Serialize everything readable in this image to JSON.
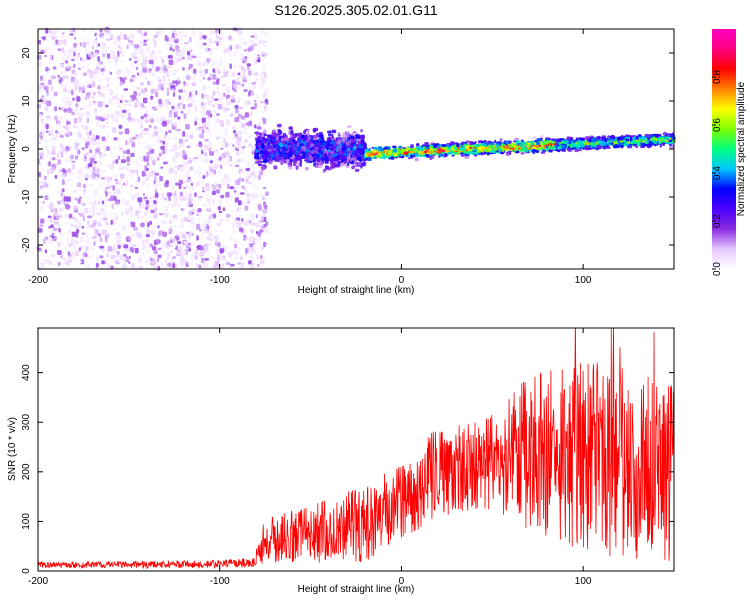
{
  "title": "S126.2025.305.02.01.G11",
  "chart_data": [
    {
      "type": "heatmap",
      "xlabel": "Height of straight line (km)",
      "ylabel": "Frequency (Hz)",
      "xlim": [
        -200,
        150
      ],
      "ylim": [
        -25,
        25
      ],
      "xticks": [
        -200,
        -100,
        0,
        100
      ],
      "yticks": [
        -20,
        -10,
        0,
        10,
        20
      ],
      "colorbar": {
        "label": "Normalized spectral amplitude",
        "range": [
          0,
          1
        ],
        "ticks": [
          "0.0",
          "0.2",
          "0.4",
          "0.6",
          "0.8"
        ],
        "colormap": [
          "#ffffff",
          "#e6c8ff",
          "#8a2be2",
          "#4b00ff",
          "#0000ff",
          "#00c8ff",
          "#00ff80",
          "#7fff00",
          "#ffff00",
          "#ff8000",
          "#ff0000",
          "#ff0080",
          "#ff00c0"
        ]
      },
      "regions": [
        {
          "x_range": [
            -200,
            -80
          ],
          "description": "diffuse low-amplitude noise over full frequency range",
          "amplitude": [
            0.02,
            0.18
          ]
        },
        {
          "x_range": [
            -80,
            -20
          ],
          "center_freq": 0,
          "freq_spread": 5,
          "amplitude": [
            0.1,
            0.35
          ]
        },
        {
          "x_range": [
            -20,
            150
          ],
          "center_freq_start": -1,
          "center_freq_end": 2,
          "freq_spread": 1.5,
          "amplitude": [
            0.3,
            0.9
          ]
        }
      ],
      "grid": false
    },
    {
      "type": "line",
      "xlabel": "Height of straight line (km)",
      "ylabel": "SNR (10 * v/v)",
      "xlim": [
        -200,
        150
      ],
      "ylim": [
        0,
        490
      ],
      "xticks": [
        -200,
        -100,
        0,
        100
      ],
      "yticks": [
        0,
        100,
        200,
        300,
        400
      ],
      "series_color": "#ff0000",
      "envelope": [
        {
          "x": -200,
          "mean": 12,
          "spread": 5
        },
        {
          "x": -100,
          "mean": 14,
          "spread": 6
        },
        {
          "x": -82,
          "mean": 16,
          "spread": 8
        },
        {
          "x": -75,
          "mean": 60,
          "spread": 35
        },
        {
          "x": -50,
          "mean": 75,
          "spread": 45
        },
        {
          "x": -20,
          "mean": 95,
          "spread": 60
        },
        {
          "x": 0,
          "mean": 140,
          "spread": 60
        },
        {
          "x": 20,
          "mean": 200,
          "spread": 70
        },
        {
          "x": 50,
          "mean": 220,
          "spread": 75
        },
        {
          "x": 70,
          "mean": 240,
          "spread": 120
        },
        {
          "x": 100,
          "mean": 230,
          "spread": 150
        },
        {
          "x": 125,
          "mean": 220,
          "spread": 150
        },
        {
          "x": 150,
          "mean": 200,
          "spread": 140
        }
      ],
      "grid": false
    }
  ]
}
